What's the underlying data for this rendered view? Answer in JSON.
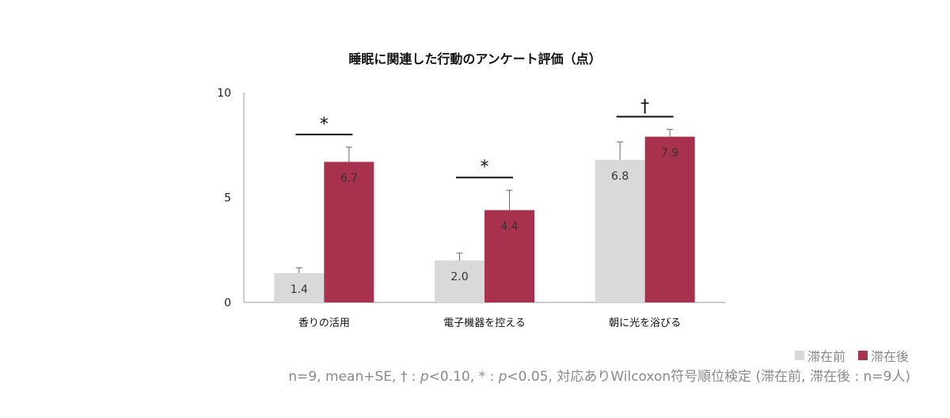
{
  "chart_data": {
    "type": "bar",
    "title": "睡眠に関連した行動のアンケート評価（点）",
    "categories": [
      "香りの活用",
      "電子機器を控える",
      "朝に光を浴びる"
    ],
    "series": [
      {
        "name": "滞在前",
        "values": [
          1.4,
          2.0,
          6.8
        ],
        "errors": [
          0.25,
          0.35,
          0.85
        ],
        "labels": [
          "1.4",
          "2.0",
          "6.8"
        ]
      },
      {
        "name": "滞在後",
        "values": [
          6.7,
          4.4,
          7.9
        ],
        "errors": [
          0.7,
          0.95,
          0.35
        ],
        "labels": [
          "6.7",
          "4.4",
          "7.9"
        ]
      }
    ],
    "significance": [
      "*",
      "*",
      "†"
    ],
    "ylim": [
      0,
      10
    ],
    "yticks": [
      "0",
      "5",
      "10"
    ],
    "xlabel": "",
    "ylabel": "",
    "legend_position": "bottom-right",
    "colors": {
      "before": "#d9d9d9",
      "after": "#a8324d"
    }
  },
  "legend": {
    "before": "滞在前",
    "after": "滞在後"
  },
  "footnote": {
    "prefix": "n=9, mean+SE, † : ",
    "p1": "p",
    "mid1": "<0.10, * : ",
    "p2": "p",
    "suffix": "<0.05, 対応ありWilcoxon符号順位検定 (滞在前, 滞在後 : n=9人)"
  }
}
